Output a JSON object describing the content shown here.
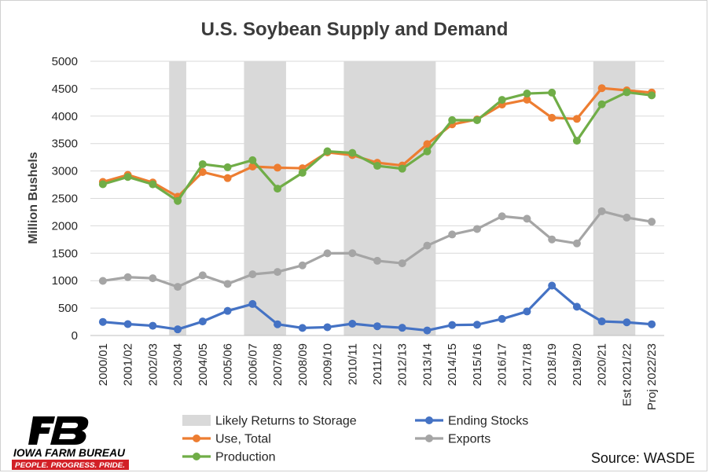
{
  "chart_data": {
    "type": "line",
    "title": "U.S. Soybean Supply and Demand",
    "ylabel": "Million Bushels",
    "xlabel": "",
    "ylim": [
      0,
      5000
    ],
    "yticks": [
      0,
      500,
      1000,
      1500,
      2000,
      2500,
      3000,
      3500,
      4000,
      4500,
      5000
    ],
    "grid": true,
    "legend_position": "bottom",
    "categories": [
      "2000/01",
      "2001/02",
      "2002/03",
      "2003/04",
      "2004/05",
      "2005/06",
      "2006/07",
      "2007/08",
      "2008/09",
      "2009/10",
      "2010/11",
      "2011/12",
      "2012/13",
      "2013/14",
      "2014/15",
      "2015/16",
      "2016/17",
      "2017/18",
      "2018/19",
      "2019/20",
      "2020/21",
      "Est 2021/22",
      "Proj 2022/23"
    ],
    "shaded_bands": {
      "name": "Likely Returns to Storage",
      "color": "#d9d9d9",
      "ranges": [
        [
          "2003/04",
          "2003/04"
        ],
        [
          "2006/07",
          "2007/08"
        ],
        [
          "2010/11",
          "2013/14"
        ],
        [
          "2020/21",
          "Est 2021/22"
        ]
      ]
    },
    "series": [
      {
        "name": "Ending Stocks",
        "color": "#4472c4",
        "values": [
          248,
          208,
          178,
          112,
          256,
          449,
          574,
          205,
          138,
          151,
          215,
          169,
          141,
          92,
          191,
          197,
          302,
          438,
          909,
          525,
          257,
          240,
          205
        ]
      },
      {
        "name": "Exports",
        "color": "#a5a5a5",
        "values": [
          996,
          1064,
          1044,
          887,
          1097,
          940,
          1116,
          1159,
          1279,
          1499,
          1501,
          1362,
          1317,
          1639,
          1842,
          1942,
          2174,
          2129,
          1752,
          1679,
          2266,
          2150,
          2075
        ]
      },
      {
        "name": "Use, Total",
        "color": "#ed7d31",
        "values": [
          2800,
          2930,
          2790,
          2530,
          2980,
          2870,
          3080,
          3060,
          3050,
          3340,
          3290,
          3150,
          3100,
          3490,
          3850,
          3940,
          4210,
          4300,
          3970,
          3950,
          4510,
          4470,
          4430
        ]
      },
      {
        "name": "Production",
        "color": "#70ad47",
        "values": [
          2758,
          2891,
          2756,
          2454,
          3124,
          3068,
          3197,
          2677,
          2967,
          3359,
          3329,
          3094,
          3042,
          3357,
          3927,
          3926,
          4296,
          4412,
          4428,
          3552,
          4216,
          4435,
          4379
        ]
      }
    ],
    "legend": [
      {
        "label": "Likely Returns to Storage",
        "kind": "band"
      },
      {
        "label": "Ending Stocks",
        "kind": "line"
      },
      {
        "label": "Use, Total",
        "kind": "line"
      },
      {
        "label": "Exports",
        "kind": "line"
      },
      {
        "label": "Production",
        "kind": "line"
      }
    ],
    "source": "Source: WASDE"
  },
  "logo": {
    "text": "IOWA FARM BUREAU",
    "tagline": "PEOPLE. PROGRESS. PRIDE.",
    "mark": "FB",
    "red": "#d21f26"
  }
}
